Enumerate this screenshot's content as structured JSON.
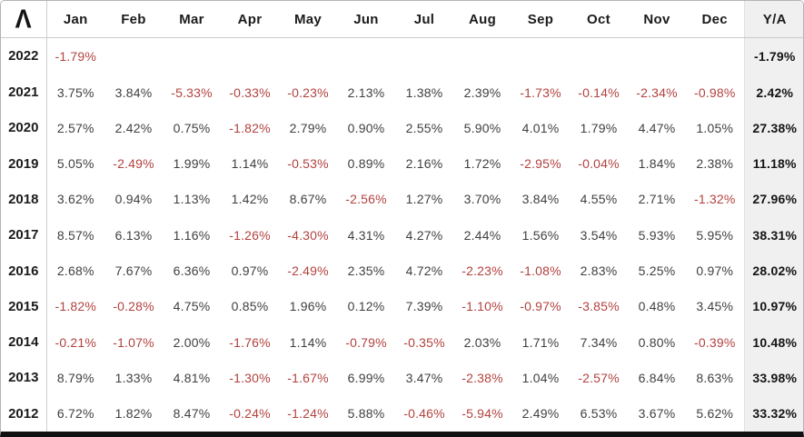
{
  "logo_glyph": "Λ",
  "colors": {
    "positive_text": "#404040",
    "negative_text": "#b2423f",
    "annual_column_bg": "#f0f0f0",
    "header_text": "#1b1b1b"
  },
  "table": {
    "corner_logo_glyph": "Λ",
    "month_columns": [
      "Jan",
      "Feb",
      "Mar",
      "Apr",
      "May",
      "Jun",
      "Jul",
      "Aug",
      "Sep",
      "Oct",
      "Nov",
      "Dec"
    ],
    "annual_column": "Y/A",
    "rows": [
      {
        "year": "2022",
        "monthly": [
          "-1.79%",
          "",
          "",
          "",
          "",
          "",
          "",
          "",
          "",
          "",
          "",
          ""
        ],
        "annual": "-1.79%"
      },
      {
        "year": "2021",
        "monthly": [
          "3.75%",
          "3.84%",
          "-5.33%",
          "-0.33%",
          "-0.23%",
          "2.13%",
          "1.38%",
          "2.39%",
          "-1.73%",
          "-0.14%",
          "-2.34%",
          "-0.98%"
        ],
        "annual": "2.42%"
      },
      {
        "year": "2020",
        "monthly": [
          "2.57%",
          "2.42%",
          "0.75%",
          "-1.82%",
          "2.79%",
          "0.90%",
          "2.55%",
          "5.90%",
          "4.01%",
          "1.79%",
          "4.47%",
          "1.05%"
        ],
        "annual": "27.38%"
      },
      {
        "year": "2019",
        "monthly": [
          "5.05%",
          "-2.49%",
          "1.99%",
          "1.14%",
          "-0.53%",
          "0.89%",
          "2.16%",
          "1.72%",
          "-2.95%",
          "-0.04%",
          "1.84%",
          "2.38%"
        ],
        "annual": "11.18%"
      },
      {
        "year": "2018",
        "monthly": [
          "3.62%",
          "0.94%",
          "1.13%",
          "1.42%",
          "8.67%",
          "-2.56%",
          "1.27%",
          "3.70%",
          "3.84%",
          "4.55%",
          "2.71%",
          "-1.32%"
        ],
        "annual": "27.96%"
      },
      {
        "year": "2017",
        "monthly": [
          "8.57%",
          "6.13%",
          "1.16%",
          "-1.26%",
          "-4.30%",
          "4.31%",
          "4.27%",
          "2.44%",
          "1.56%",
          "3.54%",
          "5.93%",
          "5.95%"
        ],
        "annual": "38.31%"
      },
      {
        "year": "2016",
        "monthly": [
          "2.68%",
          "7.67%",
          "6.36%",
          "0.97%",
          "-2.49%",
          "2.35%",
          "4.72%",
          "-2.23%",
          "-1.08%",
          "2.83%",
          "5.25%",
          "0.97%"
        ],
        "annual": "28.02%"
      },
      {
        "year": "2015",
        "monthly": [
          "-1.82%",
          "-0.28%",
          "4.75%",
          "0.85%",
          "1.96%",
          "0.12%",
          "7.39%",
          "-1.10%",
          "-0.97%",
          "-3.85%",
          "0.48%",
          "3.45%"
        ],
        "annual": "10.97%"
      },
      {
        "year": "2014",
        "monthly": [
          "-0.21%",
          "-1.07%",
          "2.00%",
          "-1.76%",
          "1.14%",
          "-0.79%",
          "-0.35%",
          "2.03%",
          "1.71%",
          "7.34%",
          "0.80%",
          "-0.39%"
        ],
        "annual": "10.48%"
      },
      {
        "year": "2013",
        "monthly": [
          "8.79%",
          "1.33%",
          "4.81%",
          "-1.30%",
          "-1.67%",
          "6.99%",
          "3.47%",
          "-2.38%",
          "1.04%",
          "-2.57%",
          "6.84%",
          "8.63%"
        ],
        "annual": "33.98%"
      },
      {
        "year": "2012",
        "monthly": [
          "6.72%",
          "1.82%",
          "8.47%",
          "-0.24%",
          "-1.24%",
          "5.88%",
          "-0.46%",
          "-5.94%",
          "2.49%",
          "6.53%",
          "3.67%",
          "5.62%"
        ],
        "annual": "33.32%"
      }
    ]
  },
  "chart_data": {
    "type": "table",
    "columns": [
      "Jan",
      "Feb",
      "Mar",
      "Apr",
      "May",
      "Jun",
      "Jul",
      "Aug",
      "Sep",
      "Oct",
      "Nov",
      "Dec",
      "Y/A"
    ],
    "unit": "percent",
    "rows": [
      {
        "year": 2022,
        "values": [
          -1.79,
          null,
          null,
          null,
          null,
          null,
          null,
          null,
          null,
          null,
          null,
          null
        ],
        "annual": -1.79
      },
      {
        "year": 2021,
        "values": [
          3.75,
          3.84,
          -5.33,
          -0.33,
          -0.23,
          2.13,
          1.38,
          2.39,
          -1.73,
          -0.14,
          -2.34,
          -0.98
        ],
        "annual": 2.42
      },
      {
        "year": 2020,
        "values": [
          2.57,
          2.42,
          0.75,
          -1.82,
          2.79,
          0.9,
          2.55,
          5.9,
          4.01,
          1.79,
          4.47,
          1.05
        ],
        "annual": 27.38
      },
      {
        "year": 2019,
        "values": [
          5.05,
          -2.49,
          1.99,
          1.14,
          -0.53,
          0.89,
          2.16,
          1.72,
          -2.95,
          -0.04,
          1.84,
          2.38
        ],
        "annual": 11.18
      },
      {
        "year": 2018,
        "values": [
          3.62,
          0.94,
          1.13,
          1.42,
          8.67,
          -2.56,
          1.27,
          3.7,
          3.84,
          4.55,
          2.71,
          -1.32
        ],
        "annual": 27.96
      },
      {
        "year": 2017,
        "values": [
          8.57,
          6.13,
          1.16,
          -1.26,
          -4.3,
          4.31,
          4.27,
          2.44,
          1.56,
          3.54,
          5.93,
          5.95
        ],
        "annual": 38.31
      },
      {
        "year": 2016,
        "values": [
          2.68,
          7.67,
          6.36,
          0.97,
          -2.49,
          2.35,
          4.72,
          -2.23,
          -1.08,
          2.83,
          5.25,
          0.97
        ],
        "annual": 28.02
      },
      {
        "year": 2015,
        "values": [
          -1.82,
          -0.28,
          4.75,
          0.85,
          1.96,
          0.12,
          7.39,
          -1.1,
          -0.97,
          -3.85,
          0.48,
          3.45
        ],
        "annual": 10.97
      },
      {
        "year": 2014,
        "values": [
          -0.21,
          -1.07,
          2.0,
          -1.76,
          1.14,
          -0.79,
          -0.35,
          2.03,
          1.71,
          7.34,
          0.8,
          -0.39
        ],
        "annual": 10.48
      },
      {
        "year": 2013,
        "values": [
          8.79,
          1.33,
          4.81,
          -1.3,
          -1.67,
          6.99,
          3.47,
          -2.38,
          1.04,
          -2.57,
          6.84,
          8.63
        ],
        "annual": 33.98
      },
      {
        "year": 2012,
        "values": [
          6.72,
          1.82,
          8.47,
          -0.24,
          -1.24,
          5.88,
          -0.46,
          -5.94,
          2.49,
          6.53,
          3.67,
          5.62
        ],
        "annual": 33.32
      }
    ]
  }
}
